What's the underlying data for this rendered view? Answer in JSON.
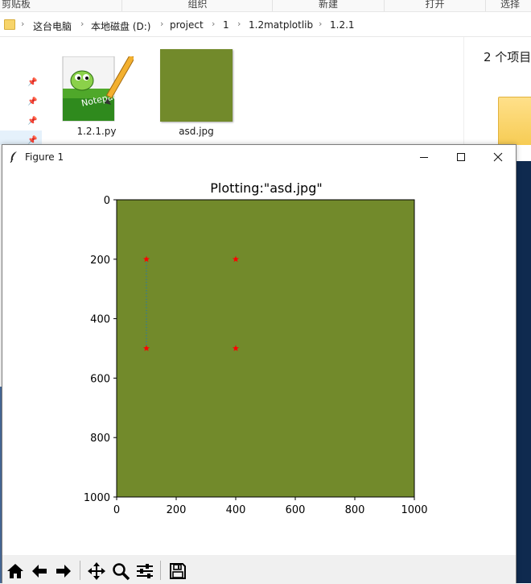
{
  "ribbon": {
    "groups": [
      "剪贴板",
      "组织",
      "新建",
      "打开",
      "选择"
    ]
  },
  "address": {
    "crumbs": [
      "这台电脑",
      "本地磁盘 (D:)",
      "project",
      "1",
      "1.2matplotlib",
      "1.2.1"
    ]
  },
  "files": [
    {
      "name": "1.2.1.py",
      "icon": "notepad-plus-plus-icon"
    },
    {
      "name": "asd.jpg",
      "icon": "image-thumbnail",
      "color": "#728a2b"
    }
  ],
  "details": {
    "count_text": "2 个项目"
  },
  "window": {
    "title": "Figure 1",
    "icon": "tk-feather-icon",
    "controls": [
      "minimize-icon",
      "maximize-icon",
      "close-icon"
    ]
  },
  "toolbar": {
    "buttons": [
      "home-icon",
      "back-arrow-icon",
      "forward-arrow-icon",
      "pan-icon",
      "zoom-icon",
      "configure-subplots-icon",
      "save-icon"
    ]
  },
  "colors": {
    "image_fill": "#728a2b",
    "marker": "#ff0000",
    "line": "#1f77b4",
    "window_bg": "#ffffff",
    "toolbar_bg": "#f0f0f0"
  },
  "chart_data": {
    "type": "scatter",
    "title": "Plotting:\"asd.jpg\"",
    "background_image": "asd.jpg",
    "xlim": [
      0,
      1000
    ],
    "ylim": [
      1000,
      0
    ],
    "y_inverted": true,
    "xticks": [
      0,
      200,
      400,
      600,
      800,
      1000
    ],
    "yticks": [
      0,
      200,
      400,
      600,
      800,
      1000
    ],
    "grid": false,
    "series": [
      {
        "kind": "points",
        "marker": "*",
        "color": "#ff0000",
        "x": [
          100,
          100,
          400,
          400
        ],
        "y": [
          200,
          500,
          200,
          500
        ]
      },
      {
        "kind": "line",
        "linestyle": "dotted",
        "color": "#1f77b4",
        "x": [
          100,
          100
        ],
        "y": [
          200,
          500
        ]
      }
    ]
  }
}
